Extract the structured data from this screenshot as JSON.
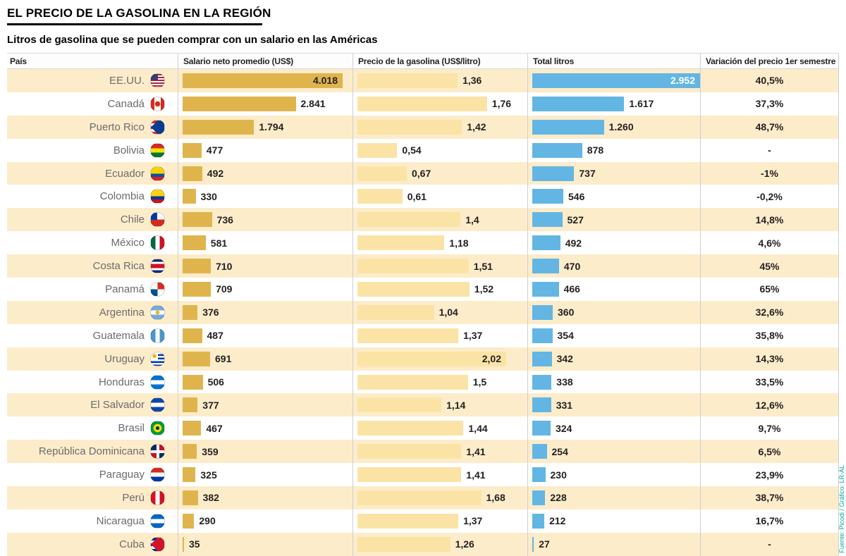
{
  "title": "EL PRECIO DE LA GASOLINA EN LA REGIÓN",
  "subtitle": "Litros de gasolina que se pueden comprar con un salario en las Américas",
  "source": "Fuente: Picodi / Gráfico: LR-AL",
  "colors": {
    "salary_bar": "#e0b44d",
    "price_bar": "#fbe3a6",
    "liters_bar": "#63b6e3",
    "row_alt": "#fdecca",
    "source_text": "#00a79d"
  },
  "chart_data": {
    "type": "bar",
    "title": "EL PRECIO DE LA GASOLINA EN LA REGIÓN",
    "subtitle": "Litros de gasolina que se pueden comprar con un salario en las Américas",
    "columns": [
      "País",
      "Salario neto promedio (US$)",
      "Precio de la gasolina (US$/litro)",
      "Total litros",
      "Variación del precio 1er semestre"
    ],
    "axes": {
      "salary_max": 4018,
      "price_max": 2.02,
      "liters_max": 2952
    },
    "rows": [
      {
        "country": "EE.UU.",
        "flag": "us",
        "salary": 4018,
        "salary_label": "4.018",
        "price": 1.36,
        "price_label": "1,36",
        "liters": 2952,
        "liters_label": "2.952",
        "variation": "40,5%"
      },
      {
        "country": "Canadá",
        "flag": "ca",
        "salary": 2841,
        "salary_label": "2.841",
        "price": 1.76,
        "price_label": "1,76",
        "liters": 1617,
        "liters_label": "1.617",
        "variation": "37,3%"
      },
      {
        "country": "Puerto Rico",
        "flag": "pr",
        "salary": 1794,
        "salary_label": "1.794",
        "price": 1.42,
        "price_label": "1,42",
        "liters": 1260,
        "liters_label": "1.260",
        "variation": "48,7%"
      },
      {
        "country": "Bolivia",
        "flag": "bo",
        "salary": 477,
        "salary_label": "477",
        "price": 0.54,
        "price_label": "0,54",
        "liters": 878,
        "liters_label": "878",
        "variation": "-"
      },
      {
        "country": "Ecuador",
        "flag": "ec",
        "salary": 492,
        "salary_label": "492",
        "price": 0.67,
        "price_label": "0,67",
        "liters": 737,
        "liters_label": "737",
        "variation": "-1%"
      },
      {
        "country": "Colombia",
        "flag": "co",
        "salary": 330,
        "salary_label": "330",
        "price": 0.61,
        "price_label": "0,61",
        "liters": 546,
        "liters_label": "546",
        "variation": "-0,2%"
      },
      {
        "country": "Chile",
        "flag": "cl",
        "salary": 736,
        "salary_label": "736",
        "price": 1.4,
        "price_label": "1,4",
        "liters": 527,
        "liters_label": "527",
        "variation": "14,8%"
      },
      {
        "country": "México",
        "flag": "mx",
        "salary": 581,
        "salary_label": "581",
        "price": 1.18,
        "price_label": "1,18",
        "liters": 492,
        "liters_label": "492",
        "variation": "4,6%"
      },
      {
        "country": "Costa Rica",
        "flag": "cr",
        "salary": 710,
        "salary_label": "710",
        "price": 1.51,
        "price_label": "1,51",
        "liters": 470,
        "liters_label": "470",
        "variation": "45%"
      },
      {
        "country": "Panamá",
        "flag": "pa",
        "salary": 709,
        "salary_label": "709",
        "price": 1.52,
        "price_label": "1,52",
        "liters": 466,
        "liters_label": "466",
        "variation": "65%"
      },
      {
        "country": "Argentina",
        "flag": "ar",
        "salary": 376,
        "salary_label": "376",
        "price": 1.04,
        "price_label": "1,04",
        "liters": 360,
        "liters_label": "360",
        "variation": "32,6%"
      },
      {
        "country": "Guatemala",
        "flag": "gt",
        "salary": 487,
        "salary_label": "487",
        "price": 1.37,
        "price_label": "1,37",
        "liters": 354,
        "liters_label": "354",
        "variation": "35,8%"
      },
      {
        "country": "Uruguay",
        "flag": "uy",
        "salary": 691,
        "salary_label": "691",
        "price": 2.02,
        "price_label": "2,02",
        "liters": 342,
        "liters_label": "342",
        "variation": "14,3%"
      },
      {
        "country": "Honduras",
        "flag": "hn",
        "salary": 506,
        "salary_label": "506",
        "price": 1.5,
        "price_label": "1,5",
        "liters": 338,
        "liters_label": "338",
        "variation": "33,5%"
      },
      {
        "country": "El Salvador",
        "flag": "sv",
        "salary": 377,
        "salary_label": "377",
        "price": 1.14,
        "price_label": "1,14",
        "liters": 331,
        "liters_label": "331",
        "variation": "12,6%"
      },
      {
        "country": "Brasil",
        "flag": "br",
        "salary": 467,
        "salary_label": "467",
        "price": 1.44,
        "price_label": "1,44",
        "liters": 324,
        "liters_label": "324",
        "variation": "9,7%"
      },
      {
        "country": "República Dominicana",
        "flag": "do",
        "salary": 359,
        "salary_label": "359",
        "price": 1.41,
        "price_label": "1,41",
        "liters": 254,
        "liters_label": "254",
        "variation": "6,5%"
      },
      {
        "country": "Paraguay",
        "flag": "py",
        "salary": 325,
        "salary_label": "325",
        "price": 1.41,
        "price_label": "1,41",
        "liters": 230,
        "liters_label": "230",
        "variation": "23,9%"
      },
      {
        "country": "Perú",
        "flag": "pe",
        "salary": 382,
        "salary_label": "382",
        "price": 1.68,
        "price_label": "1,68",
        "liters": 228,
        "liters_label": "228",
        "variation": "38,7%"
      },
      {
        "country": "Nicaragua",
        "flag": "ni",
        "salary": 290,
        "salary_label": "290",
        "price": 1.37,
        "price_label": "1,37",
        "liters": 212,
        "liters_label": "212",
        "variation": "16,7%"
      },
      {
        "country": "Cuba",
        "flag": "cu",
        "salary": 35,
        "salary_label": "35",
        "price": 1.26,
        "price_label": "1,26",
        "liters": 27,
        "liters_label": "27",
        "variation": "-"
      }
    ]
  }
}
